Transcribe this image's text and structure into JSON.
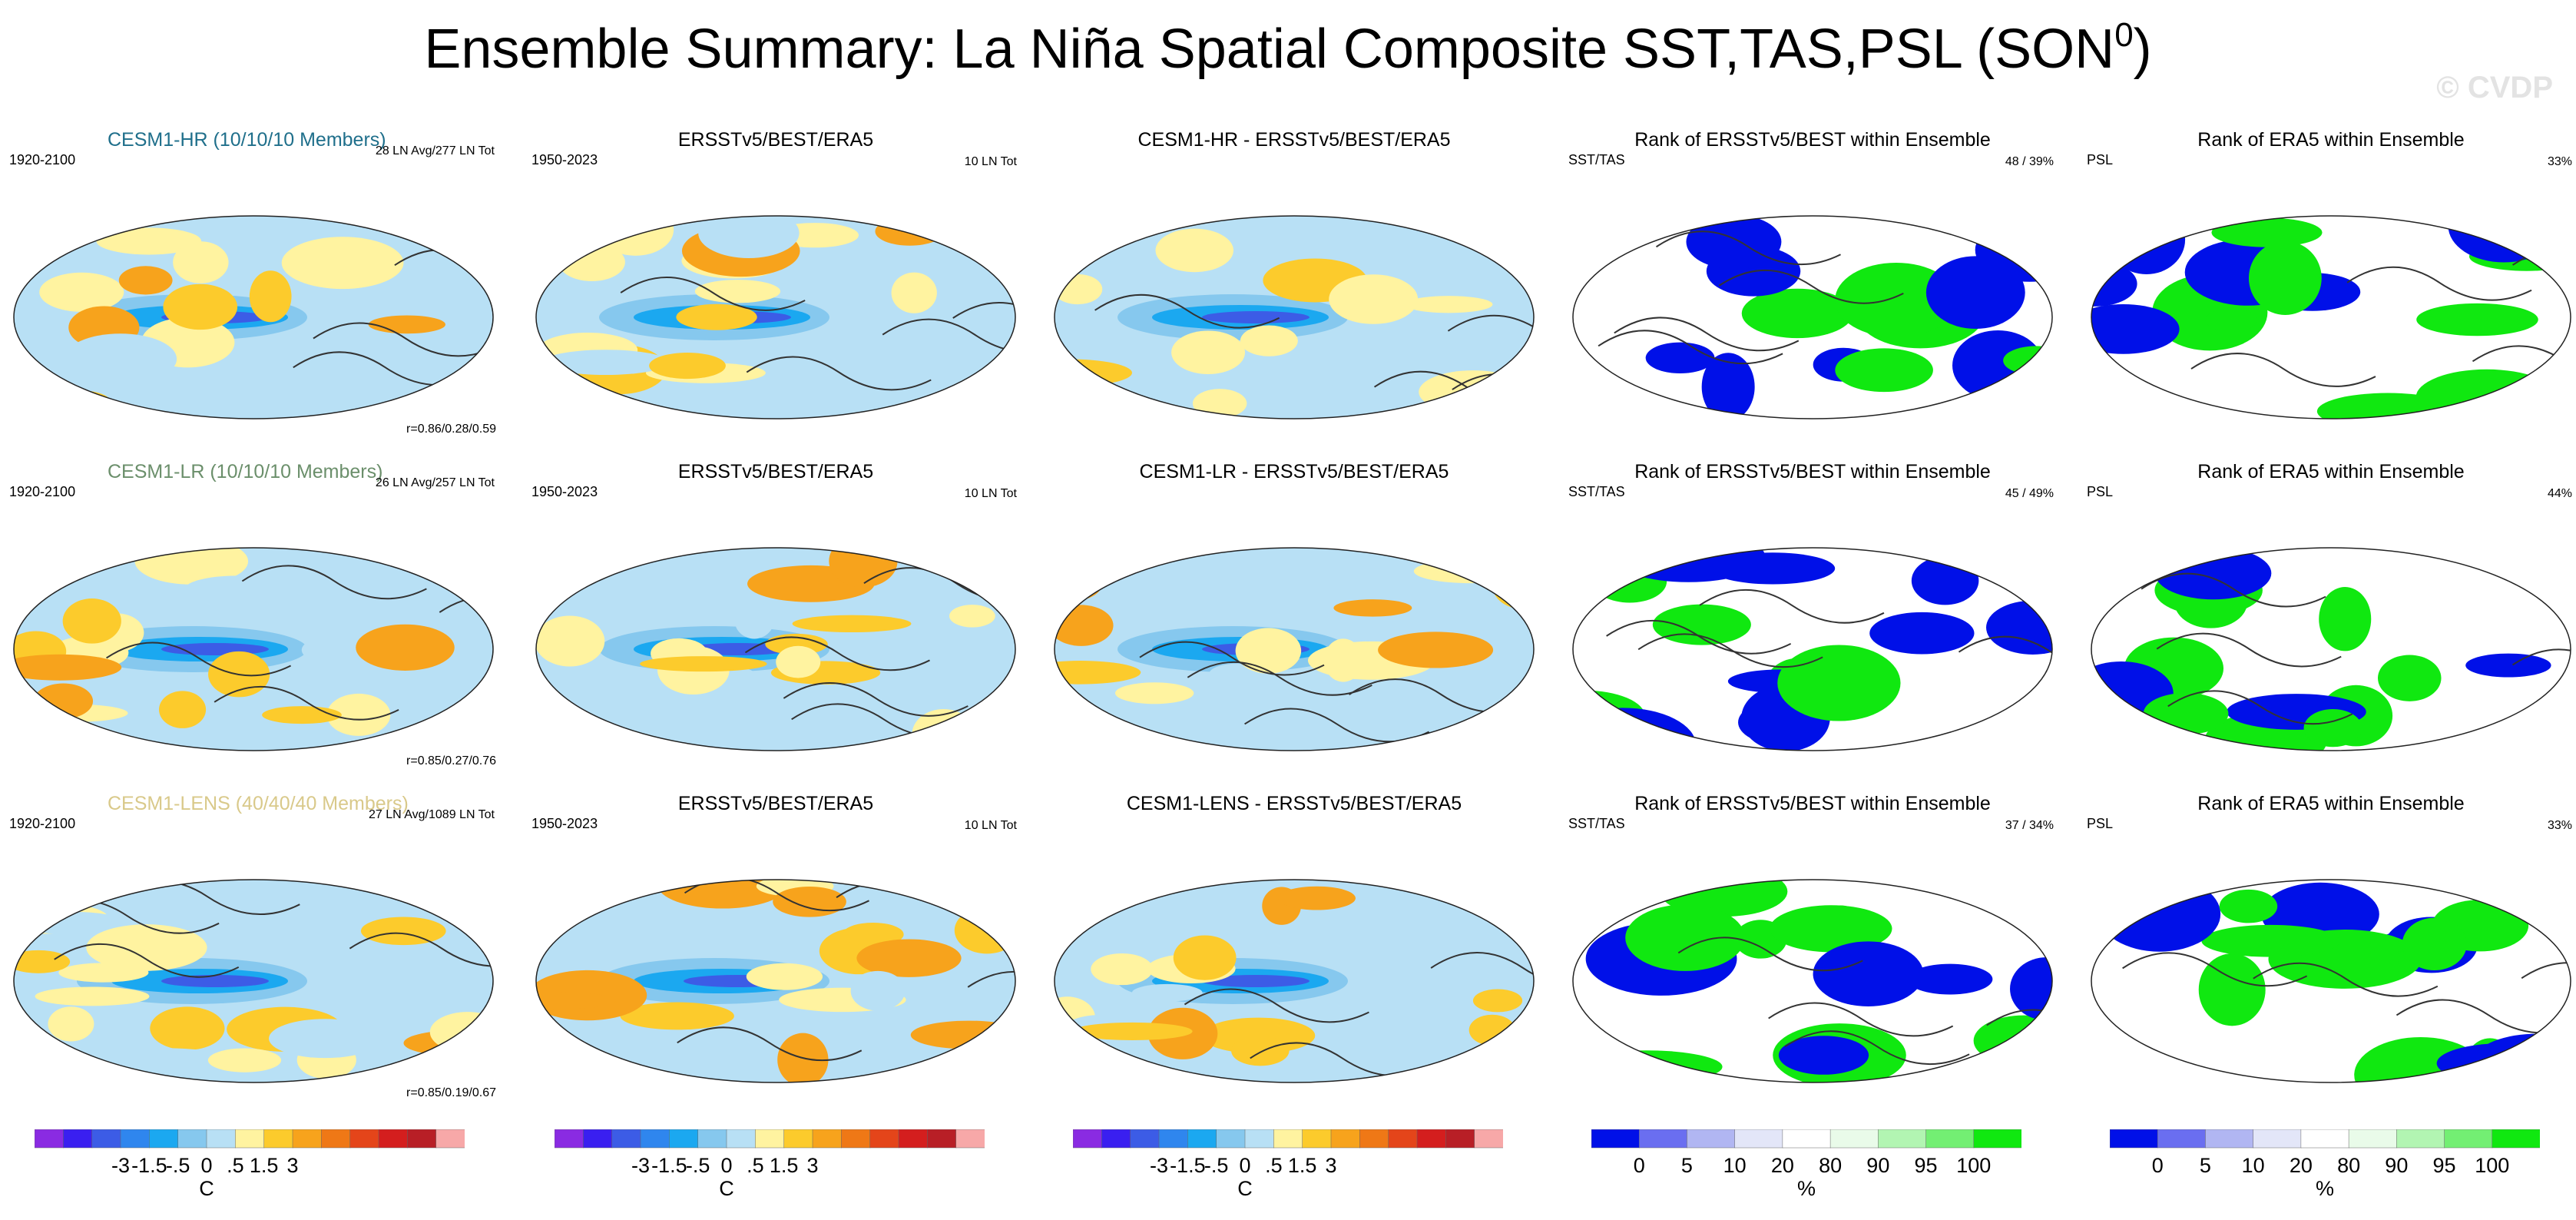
{
  "title": "Ensemble Summary: La Niña Spatial Composite SST,TAS,PSL (SON",
  "title_sup": "0",
  "title_close": ")",
  "watermark": "© CVDP",
  "rows": [
    {
      "model": "CESM1-HR (10/10/10 Members)",
      "model_color": "#1f6f8b",
      "model_period": "1920-2100",
      "model_counts": "28 LN Avg/277 LN Tot",
      "model_corr": "r=0.86/0.28/0.59",
      "obs_title": "ERSSTv5/BEST/ERA5",
      "obs_period": "1950-2023",
      "obs_counts": "10 LN Tot",
      "diff_title": "CESM1-HR - ERSSTv5/BEST/ERA5",
      "rank_sst_title": "Rank of ERSSTv5/BEST within Ensemble",
      "rank_sst_label": "SST/TAS",
      "rank_sst_pct": "48 /  39%",
      "rank_psl_title": "Rank of ERA5 within Ensemble",
      "rank_psl_label": "PSL",
      "rank_psl_pct": "33%"
    },
    {
      "model": "CESM1-LR (10/10/10 Members)",
      "model_color": "#6b8f6b",
      "model_period": "1920-2100",
      "model_counts": "26 LN Avg/257 LN Tot",
      "model_corr": "r=0.85/0.27/0.76",
      "obs_title": "ERSSTv5/BEST/ERA5",
      "obs_period": "1950-2023",
      "obs_counts": "10 LN Tot",
      "diff_title": "CESM1-LR - ERSSTv5/BEST/ERA5",
      "rank_sst_title": "Rank of ERSSTv5/BEST within Ensemble",
      "rank_sst_label": "SST/TAS",
      "rank_sst_pct": "45 /  49%",
      "rank_psl_title": "Rank of ERA5 within Ensemble",
      "rank_psl_label": "PSL",
      "rank_psl_pct": "44%"
    },
    {
      "model": "CESM1-LENS (40/40/40 Members)",
      "model_color": "#d9c98a",
      "model_period": "1920-2100",
      "model_counts": "27 LN Avg/1089 LN Tot",
      "model_corr": "r=0.85/0.19/0.67",
      "obs_title": "ERSSTv5/BEST/ERA5",
      "obs_period": "1950-2023",
      "obs_counts": "10 LN Tot",
      "diff_title": "CESM1-LENS - ERSSTv5/BEST/ERA5",
      "rank_sst_title": "Rank of ERSSTv5/BEST within Ensemble",
      "rank_sst_label": "SST/TAS",
      "rank_sst_pct": "37 /  34%",
      "rank_psl_title": "Rank of ERA5 within Ensemble",
      "rank_psl_label": "PSL",
      "rank_psl_pct": "33%"
    }
  ],
  "colorbar_anom": {
    "colors": [
      "#8a2be2",
      "#3a1ff0",
      "#3c5ce6",
      "#2f86ee",
      "#1ba8f0",
      "#86c8ee",
      "#b8e0f5",
      "#fff3a0",
      "#fccb2c",
      "#f7a31c",
      "#ef7816",
      "#e4451a",
      "#d41e1e",
      "#b81f26",
      "#f7a8a8"
    ],
    "labels": [
      "-3",
      "-1.5",
      "-.5",
      "0",
      ".5",
      "1.5",
      "3"
    ],
    "unit": "C"
  },
  "colorbar_rank": {
    "colors": [
      "#0010e8",
      "#6a6ef0",
      "#b1b6f2",
      "#e3e6f8",
      "#ffffff",
      "#e9fbe9",
      "#b2f5b2",
      "#73ef73",
      "#10e810"
    ],
    "labels": [
      "0",
      "5",
      "10",
      "20",
      "80",
      "90",
      "95",
      "100"
    ],
    "unit": "%"
  },
  "chart_data": {
    "type": "heatmap",
    "title": "Ensemble Summary: La Niña Spatial Composite SST,TAS,PSL (SON0)",
    "layout": "3 rows x 5 columns of global map panels",
    "variables": [
      "SST",
      "TAS",
      "PSL"
    ],
    "season": "SON",
    "anomaly_colorbar": {
      "unit": "C",
      "tick_labels": [
        "-3",
        "-1.5",
        "-.5",
        "0",
        ".5",
        "1.5",
        "3"
      ]
    },
    "rank_colorbar": {
      "unit": "%",
      "tick_labels": [
        "0",
        "5",
        "10",
        "20",
        "80",
        "90",
        "95",
        "100"
      ]
    }
  }
}
